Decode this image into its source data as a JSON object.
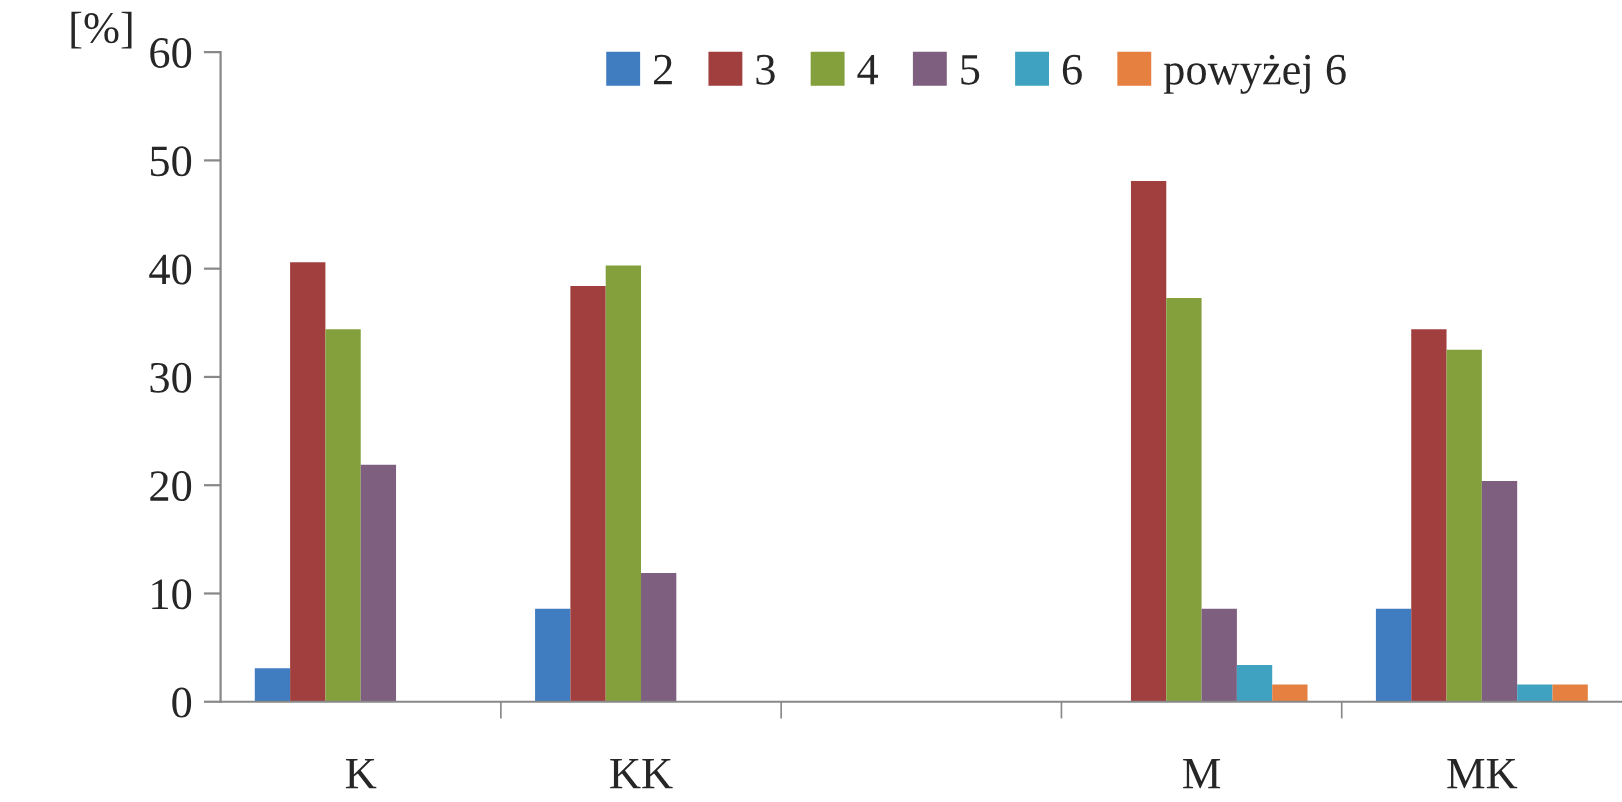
{
  "chart_data": {
    "type": "bar",
    "ylabel": "[%]",
    "categories": [
      "K",
      "KK",
      null,
      "M",
      "MK"
    ],
    "series": [
      {
        "name": "2",
        "color": "#3f7cc0",
        "values": [
          3.1,
          8.6,
          null,
          null,
          8.6
        ]
      },
      {
        "name": "3",
        "color": "#a13f3f",
        "values": [
          40.6,
          38.4,
          null,
          48.1,
          34.4
        ]
      },
      {
        "name": "4",
        "color": "#83a03d",
        "values": [
          34.4,
          40.3,
          null,
          37.3,
          32.5
        ]
      },
      {
        "name": "5",
        "color": "#7f5f80",
        "values": [
          21.9,
          11.9,
          null,
          8.6,
          20.4
        ]
      },
      {
        "name": "6",
        "color": "#3ea2c0",
        "values": [
          null,
          null,
          null,
          3.4,
          1.6
        ]
      },
      {
        "name": "powyżej 6",
        "color": "#e58040",
        "values": [
          null,
          null,
          null,
          1.6,
          1.6
        ]
      }
    ],
    "ylim": [
      0,
      60
    ],
    "yticks": [
      0,
      10,
      20,
      30,
      40,
      50,
      60
    ],
    "grid": false,
    "legend": "top"
  }
}
